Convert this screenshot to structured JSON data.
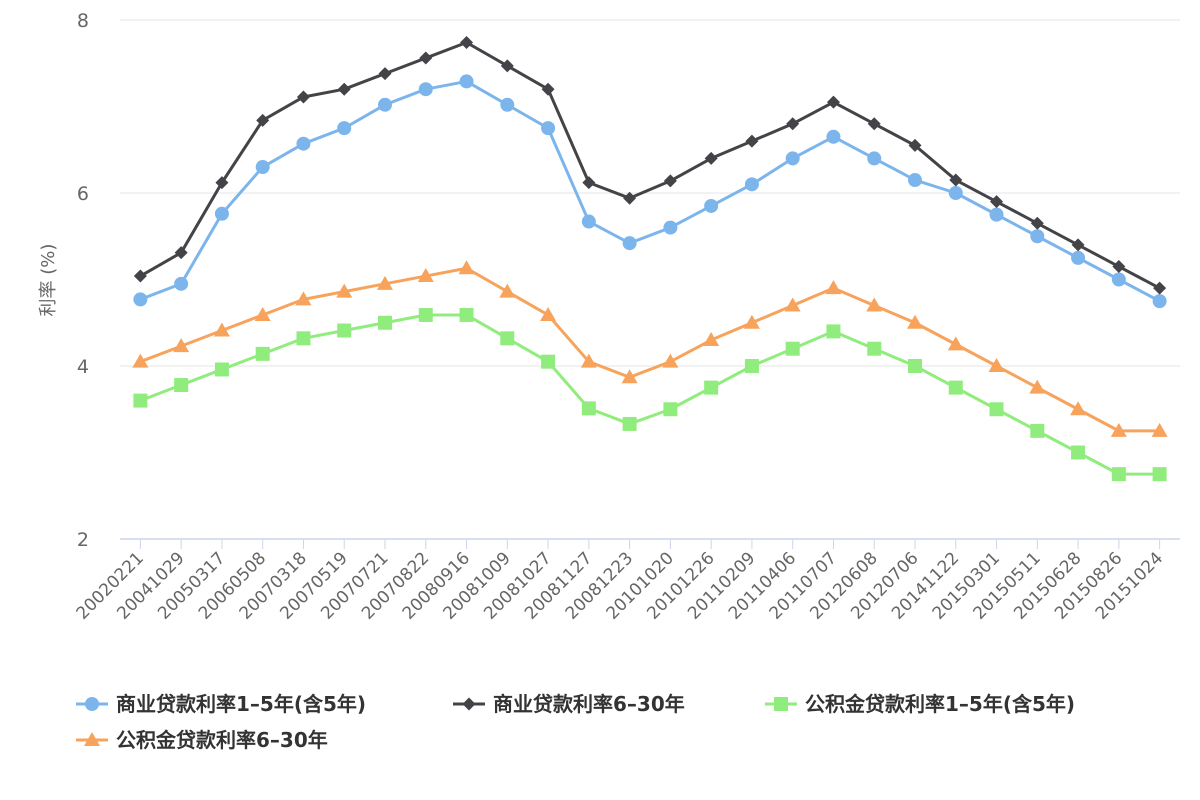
{
  "chart_data": {
    "type": "line",
    "title": "",
    "xlabel": "",
    "ylabel": "利率 (%)",
    "ylim": [
      2,
      8
    ],
    "yticks": [
      "2",
      "4",
      "6",
      "8"
    ],
    "grid": true,
    "legend_position": "bottom",
    "categories": [
      "20020221",
      "20041029",
      "20050317",
      "20060508",
      "20070318",
      "20070519",
      "20070721",
      "20070822",
      "20080916",
      "20081009",
      "20081027",
      "20081127",
      "20081223",
      "20101020",
      "20101226",
      "20110209",
      "20110406",
      "20110707",
      "20120608",
      "20120706",
      "20141122",
      "20150301",
      "20150511",
      "20150628",
      "20150826",
      "20151024"
    ],
    "series": [
      {
        "name": "商业贷款利率1–5年(含5年)",
        "color": "#7cb5ec",
        "marker": "circle",
        "values": [
          4.77,
          4.95,
          5.76,
          6.3,
          6.57,
          6.75,
          7.02,
          7.2,
          7.29,
          7.02,
          6.75,
          5.67,
          5.42,
          5.6,
          5.85,
          6.1,
          6.4,
          6.65,
          6.4,
          6.15,
          6.0,
          5.75,
          5.5,
          5.25,
          5.0,
          4.75
        ]
      },
      {
        "name": "商业贷款利率6–30年",
        "color": "#434348",
        "marker": "diamond",
        "values": [
          5.04,
          5.31,
          6.12,
          6.84,
          7.11,
          7.2,
          7.38,
          7.56,
          7.74,
          7.47,
          7.2,
          6.12,
          5.94,
          6.14,
          6.4,
          6.6,
          6.8,
          7.05,
          6.8,
          6.55,
          6.15,
          5.9,
          5.65,
          5.4,
          5.15,
          4.9
        ]
      },
      {
        "name": "公积金贷款利率1–5年(含5年)",
        "color": "#90ed7d",
        "marker": "square",
        "values": [
          3.6,
          3.78,
          3.96,
          4.14,
          4.32,
          4.41,
          4.5,
          4.59,
          4.59,
          4.32,
          4.05,
          3.51,
          3.33,
          3.5,
          3.75,
          4.0,
          4.2,
          4.4,
          4.2,
          4.0,
          3.75,
          3.5,
          3.25,
          3.0,
          2.75,
          2.75
        ]
      },
      {
        "name": "公积金贷款利率6–30年",
        "color": "#f7a35c",
        "marker": "triangle",
        "values": [
          4.05,
          4.23,
          4.41,
          4.59,
          4.77,
          4.86,
          4.95,
          5.04,
          5.13,
          4.86,
          4.59,
          4.05,
          3.87,
          4.05,
          4.3,
          4.5,
          4.7,
          4.9,
          4.7,
          4.5,
          4.25,
          4.0,
          3.75,
          3.5,
          3.25,
          3.25
        ]
      }
    ]
  }
}
